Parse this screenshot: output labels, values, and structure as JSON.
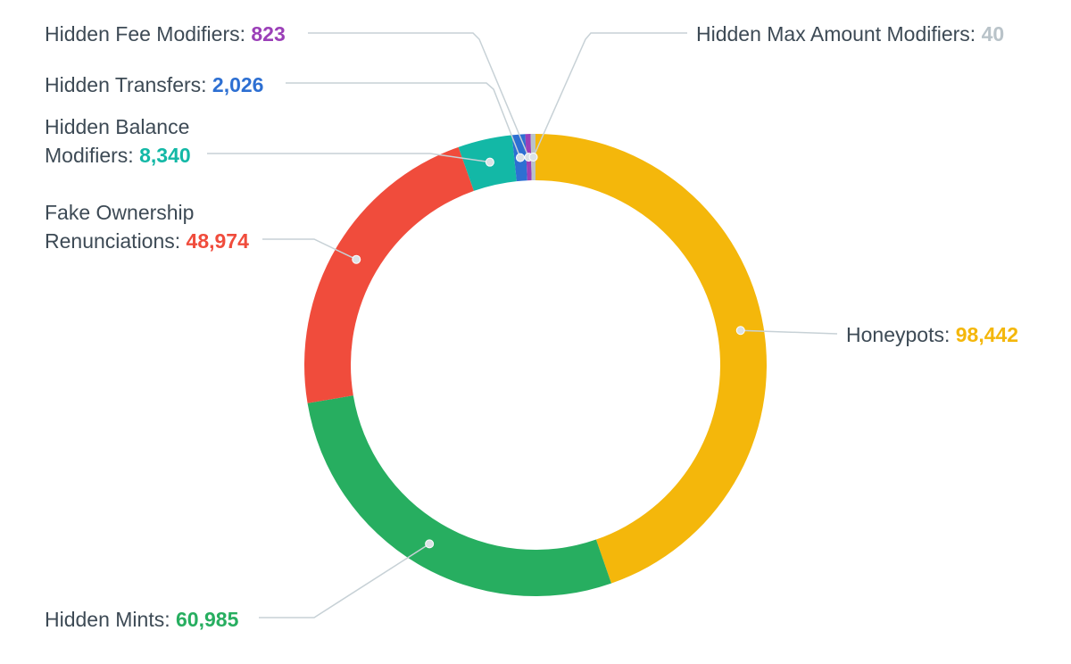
{
  "chart_data": {
    "type": "pie",
    "variant": "donut",
    "legend": "none",
    "slices": [
      {
        "label": "Honeypots",
        "value": 98442,
        "display_value": "98,442",
        "color": "#f4b70b"
      },
      {
        "label": "Hidden Mints",
        "value": 60985,
        "display_value": "60,985",
        "color": "#27ae60"
      },
      {
        "label": "Fake Ownership Renunciations",
        "label_lines": [
          "Fake Ownership",
          "Renunciations"
        ],
        "value": 48974,
        "display_value": "48,974",
        "color": "#f04c3c"
      },
      {
        "label": "Hidden Balance Modifiers",
        "label_lines": [
          "Hidden Balance",
          "Modifiers"
        ],
        "value": 8340,
        "display_value": "8,340",
        "color": "#13b8a6"
      },
      {
        "label": "Hidden Transfers",
        "value": 2026,
        "display_value": "2,026",
        "color": "#2d6fd2"
      },
      {
        "label": "Hidden Fee Modifiers",
        "value": 823,
        "display_value": "823",
        "color": "#9b3fb8"
      },
      {
        "label": "Hidden Max Amount Modifiers",
        "value": 40,
        "display_value": "40",
        "color": "#b9c3c9"
      }
    ]
  }
}
